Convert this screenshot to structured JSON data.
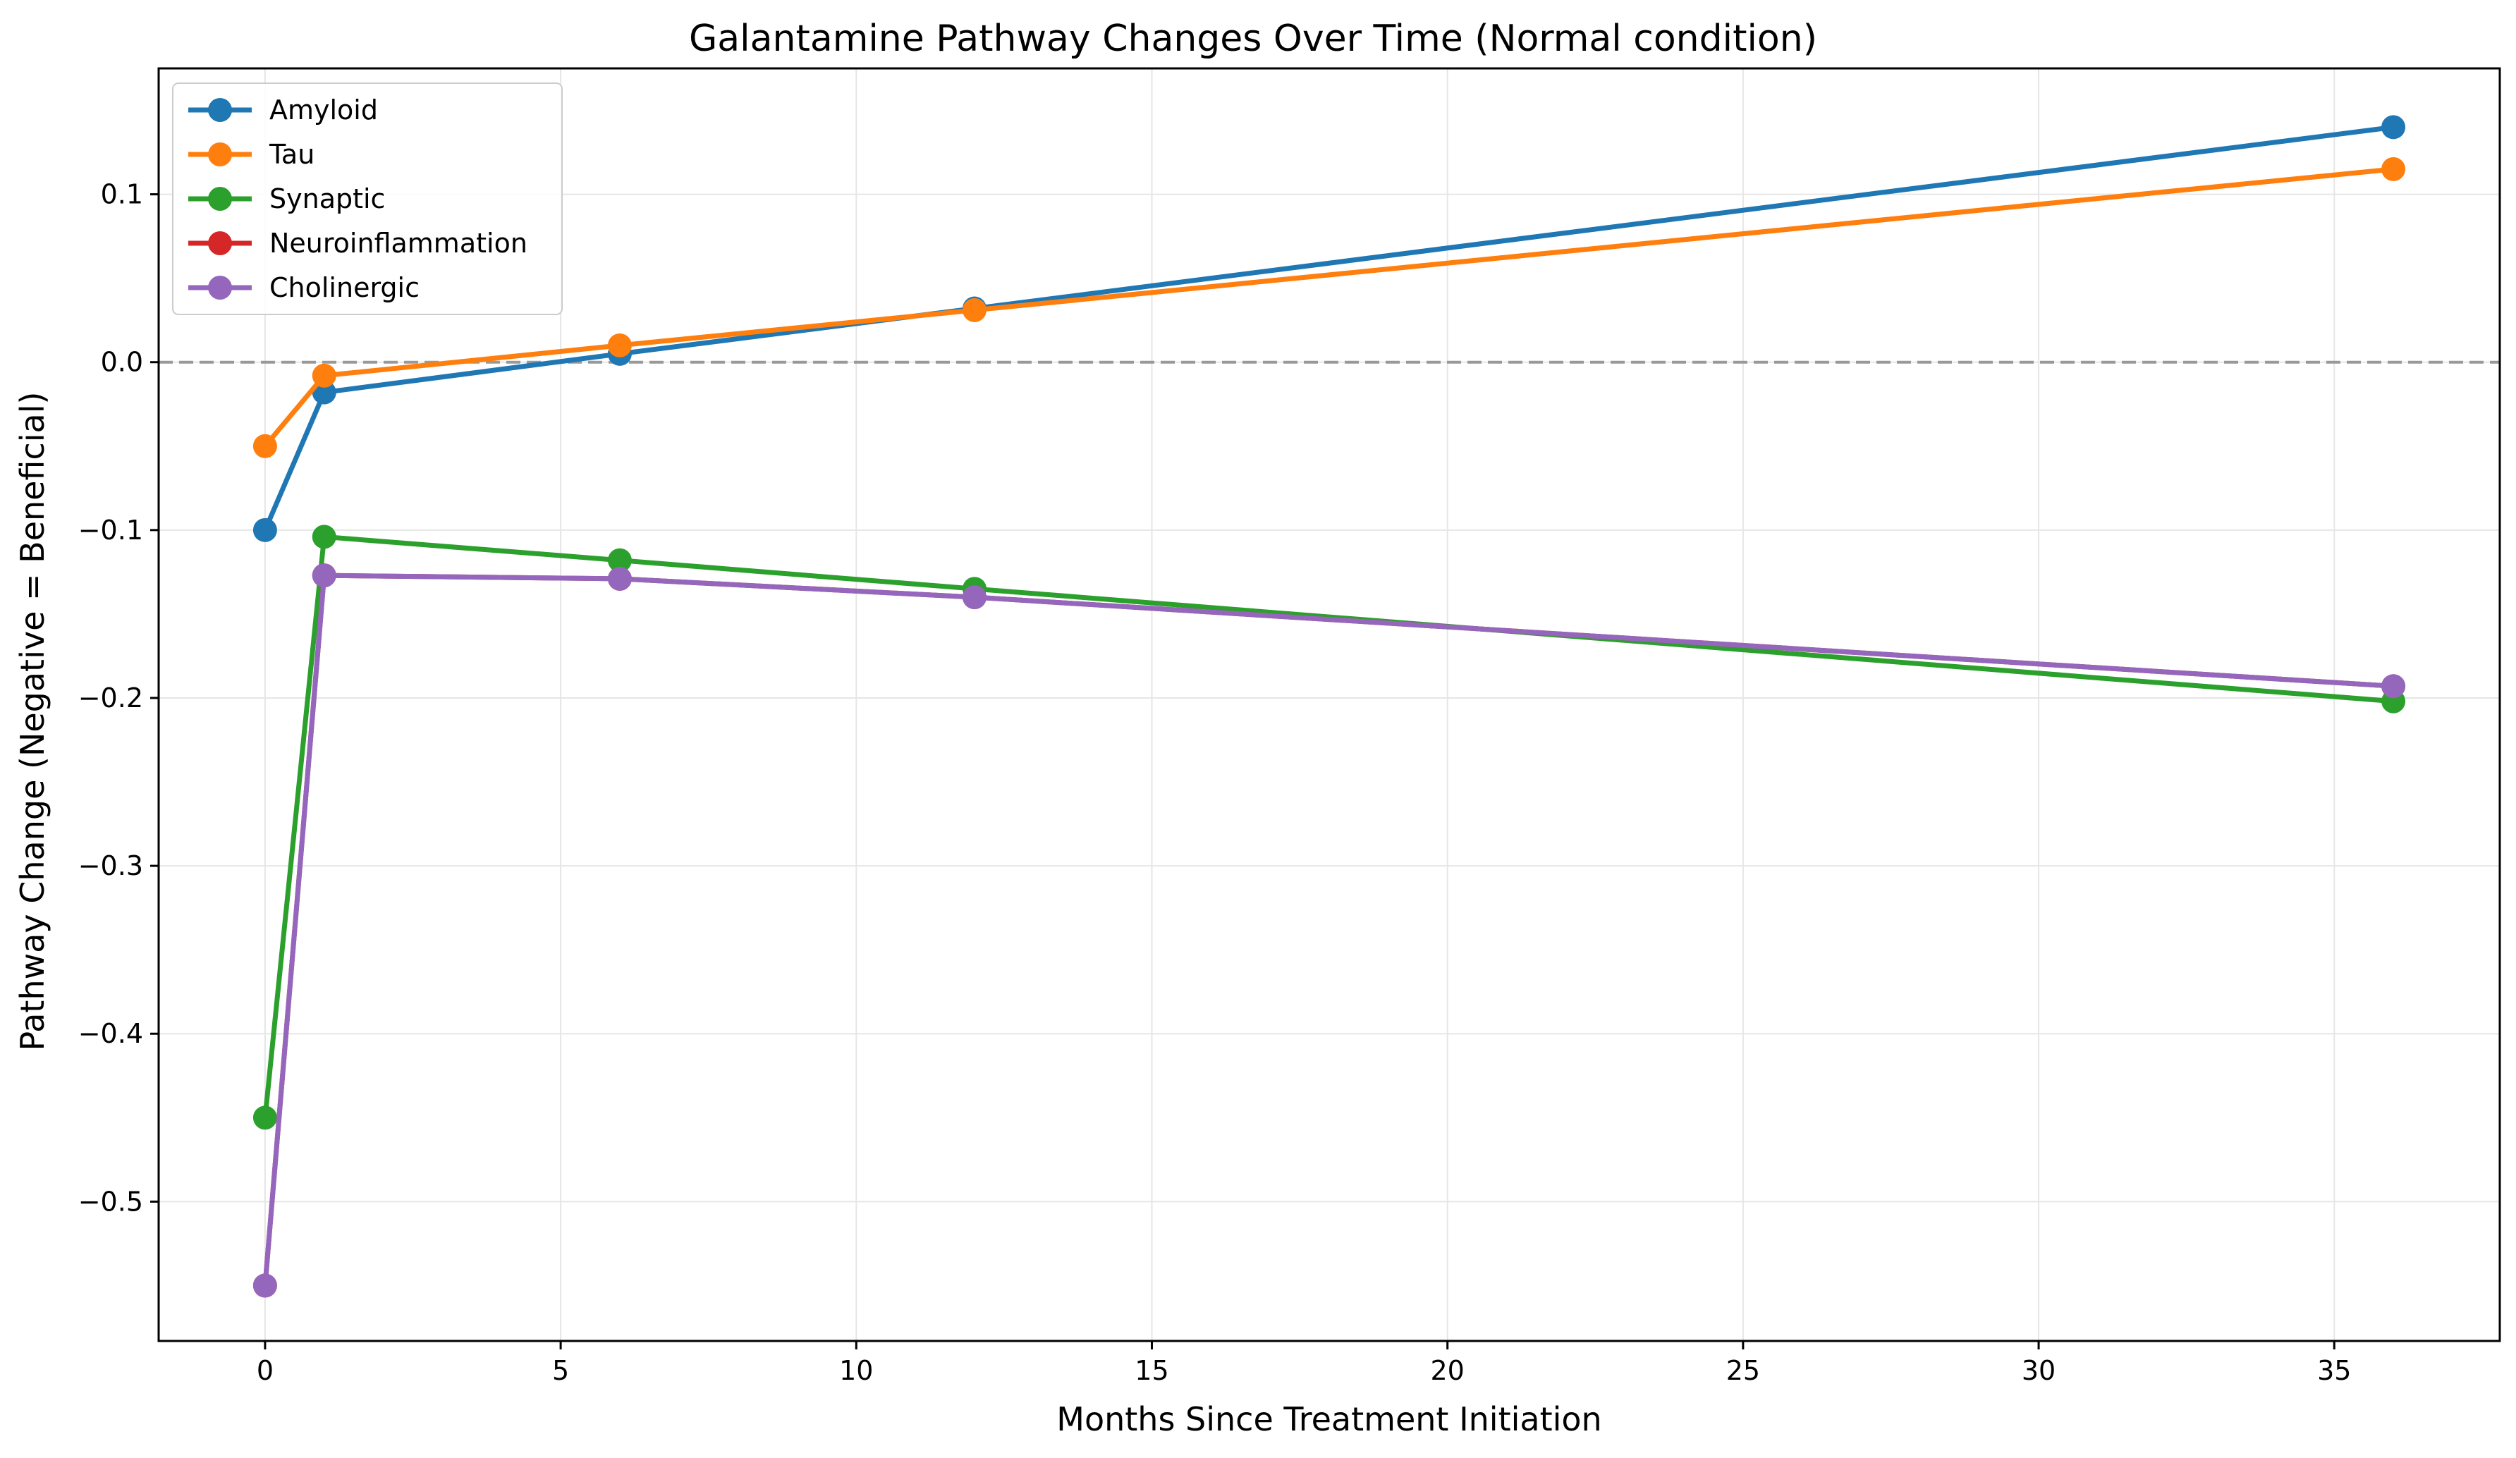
{
  "chart_data": {
    "type": "line",
    "title": "Galantamine Pathway Changes Over Time (Normal condition)",
    "xlabel": "Months Since Treatment Initiation",
    "ylabel": "Pathway Change (Negative = Beneficial)",
    "xlim": [
      -1.8,
      37.8
    ],
    "ylim": [
      -0.583,
      0.175
    ],
    "xticks": [
      0,
      5,
      10,
      15,
      20,
      25,
      30,
      35
    ],
    "yticks": [
      -0.5,
      -0.4,
      -0.3,
      -0.2,
      -0.1,
      0.0,
      0.1
    ],
    "xtick_labels": [
      "0",
      "5",
      "10",
      "15",
      "20",
      "25",
      "30",
      "35"
    ],
    "ytick_labels": [
      "−0.5",
      "−0.4",
      "−0.3",
      "−0.2",
      "−0.1",
      "0.0",
      "0.1"
    ],
    "grid": true,
    "reference_line": {
      "y": 0.0,
      "style": "dashed",
      "color": "#999999"
    },
    "legend_position": "top-left",
    "x": [
      0,
      1,
      6,
      12,
      36
    ],
    "series": [
      {
        "name": "Amyloid",
        "color": "#1f77b4",
        "values": [
          -0.1,
          -0.018,
          0.005,
          0.032,
          0.14
        ]
      },
      {
        "name": "Tau",
        "color": "#ff7f0e",
        "values": [
          -0.05,
          -0.008,
          0.01,
          0.031,
          0.115
        ]
      },
      {
        "name": "Synaptic",
        "color": "#2ca02c",
        "values": [
          -0.45,
          -0.104,
          -0.118,
          -0.135,
          -0.202
        ]
      },
      {
        "name": "Neuroinflammation",
        "color": "#d62728",
        "values": [
          -0.55,
          -0.127,
          -0.129,
          -0.14,
          -0.193
        ]
      },
      {
        "name": "Cholinergic",
        "color": "#9467bd",
        "values": [
          -0.55,
          -0.127,
          -0.129,
          -0.14,
          -0.193
        ]
      }
    ]
  }
}
